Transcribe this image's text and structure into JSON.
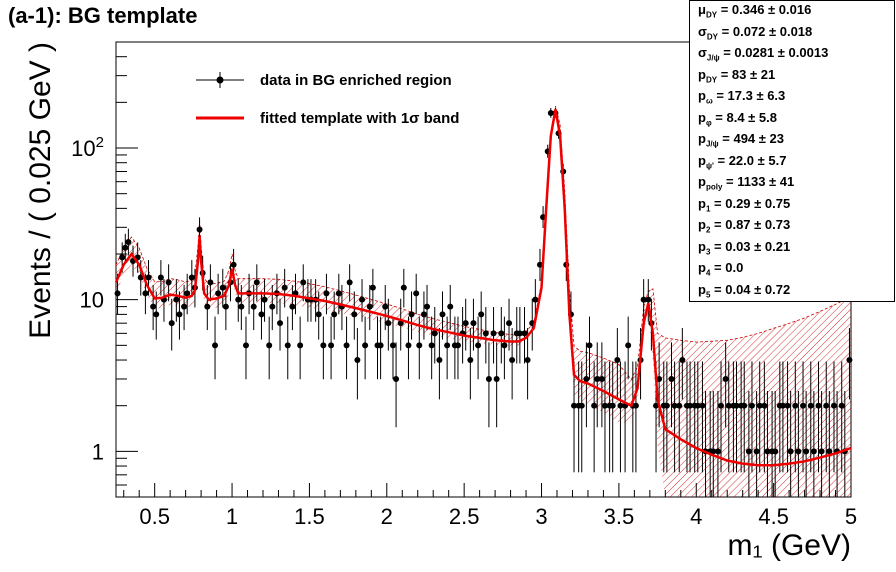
{
  "chart_data": {
    "type": "scatter",
    "title": "(a-1): BG template",
    "xlabel": "m₁ (GeV)",
    "ylabel": "Events / ( 0.025 GeV )",
    "xlim": [
      0.25,
      5.0
    ],
    "ylim": [
      0.5,
      500
    ],
    "yscale": "log",
    "x_ticks": [
      "0.5",
      "1",
      "1.5",
      "2",
      "2.5",
      "3",
      "3.5",
      "4",
      "4.5",
      "5"
    ],
    "y_ticks": [
      "1",
      "10",
      "10²"
    ],
    "legend": {
      "placement": "top-left",
      "items": [
        {
          "label": "data in BG enriched region",
          "style": "marker"
        },
        {
          "label": "fitted template with 1σ band",
          "style": "line",
          "color": "#ee0000"
        }
      ]
    },
    "series": [
      {
        "name": "data in BG enriched region",
        "points": [
          [
            0.26,
            11
          ],
          [
            0.29,
            19
          ],
          [
            0.31,
            22
          ],
          [
            0.33,
            24
          ],
          [
            0.36,
            18
          ],
          [
            0.39,
            19
          ],
          [
            0.41,
            14
          ],
          [
            0.44,
            11
          ],
          [
            0.46,
            14
          ],
          [
            0.49,
            9
          ],
          [
            0.51,
            8
          ],
          [
            0.54,
            14
          ],
          [
            0.56,
            10
          ],
          [
            0.59,
            13
          ],
          [
            0.61,
            7
          ],
          [
            0.64,
            10
          ],
          [
            0.66,
            8
          ],
          [
            0.69,
            9
          ],
          [
            0.71,
            11
          ],
          [
            0.74,
            14
          ],
          [
            0.76,
            12
          ],
          [
            0.79,
            29
          ],
          [
            0.81,
            15
          ],
          [
            0.84,
            9
          ],
          [
            0.86,
            13
          ],
          [
            0.89,
            5
          ],
          [
            0.91,
            11
          ],
          [
            0.94,
            12
          ],
          [
            0.96,
            9
          ],
          [
            0.99,
            13
          ],
          [
            1.01,
            17
          ],
          [
            1.04,
            10
          ],
          [
            1.06,
            9
          ],
          [
            1.09,
            5
          ],
          [
            1.11,
            11
          ],
          [
            1.14,
            9
          ],
          [
            1.16,
            13
          ],
          [
            1.19,
            8
          ],
          [
            1.21,
            10
          ],
          [
            1.24,
            5
          ],
          [
            1.26,
            9
          ],
          [
            1.29,
            11
          ],
          [
            1.31,
            7
          ],
          [
            1.34,
            12
          ],
          [
            1.36,
            5
          ],
          [
            1.39,
            9
          ],
          [
            1.41,
            11
          ],
          [
            1.44,
            5
          ],
          [
            1.46,
            13
          ],
          [
            1.49,
            10
          ],
          [
            1.51,
            10
          ],
          [
            1.54,
            10
          ],
          [
            1.56,
            8
          ],
          [
            1.59,
            5
          ],
          [
            1.61,
            11
          ],
          [
            1.64,
            5
          ],
          [
            1.66,
            8
          ],
          [
            1.69,
            11
          ],
          [
            1.71,
            9
          ],
          [
            1.74,
            5
          ],
          [
            1.76,
            13
          ],
          [
            1.79,
            8
          ],
          [
            1.81,
            4
          ],
          [
            1.84,
            10
          ],
          [
            1.86,
            5
          ],
          [
            1.89,
            9
          ],
          [
            1.91,
            12
          ],
          [
            1.94,
            5
          ],
          [
            1.96,
            5
          ],
          [
            1.99,
            9
          ],
          [
            2.01,
            7
          ],
          [
            2.04,
            5
          ],
          [
            2.06,
            3
          ],
          [
            2.09,
            7
          ],
          [
            2.11,
            12
          ],
          [
            2.14,
            5
          ],
          [
            2.16,
            8
          ],
          [
            2.19,
            11
          ],
          [
            2.21,
            5
          ],
          [
            2.24,
            8
          ],
          [
            2.26,
            9
          ],
          [
            2.29,
            5
          ],
          [
            2.31,
            6
          ],
          [
            2.34,
            4
          ],
          [
            2.36,
            8
          ],
          [
            2.39,
            5
          ],
          [
            2.41,
            9
          ],
          [
            2.44,
            5
          ],
          [
            2.46,
            5
          ],
          [
            2.49,
            6
          ],
          [
            2.51,
            7
          ],
          [
            2.54,
            4
          ],
          [
            2.56,
            7
          ],
          [
            2.59,
            5
          ],
          [
            2.61,
            8
          ],
          [
            2.64,
            6
          ],
          [
            2.66,
            3
          ],
          [
            2.69,
            6
          ],
          [
            2.71,
            3
          ],
          [
            2.74,
            6
          ],
          [
            2.76,
            5
          ],
          [
            2.79,
            7
          ],
          [
            2.81,
            4
          ],
          [
            2.84,
            6
          ],
          [
            2.86,
            6
          ],
          [
            2.89,
            6
          ],
          [
            2.91,
            4
          ],
          [
            2.94,
            7
          ],
          [
            2.96,
            10
          ],
          [
            2.99,
            17
          ],
          [
            3.01,
            35
          ],
          [
            3.04,
            95
          ],
          [
            3.06,
            170
          ],
          [
            3.09,
            170
          ],
          [
            3.11,
            125
          ],
          [
            3.14,
            70
          ],
          [
            3.16,
            17
          ],
          [
            3.19,
            8
          ],
          [
            3.21,
            2
          ],
          [
            3.24,
            2
          ],
          [
            3.26,
            2
          ],
          [
            3.29,
            3
          ],
          [
            3.31,
            5
          ],
          [
            3.34,
            2
          ],
          [
            3.36,
            3
          ],
          [
            3.39,
            3
          ],
          [
            3.41,
            2
          ],
          [
            3.44,
            2
          ],
          [
            3.46,
            2
          ],
          [
            3.49,
            4
          ],
          [
            3.51,
            2
          ],
          [
            3.54,
            2
          ],
          [
            3.56,
            5
          ],
          [
            3.59,
            2
          ],
          [
            3.61,
            2
          ],
          [
            3.64,
            4
          ],
          [
            3.66,
            10
          ],
          [
            3.69,
            10
          ],
          [
            3.71,
            7
          ],
          [
            3.74,
            2
          ],
          [
            3.76,
            3
          ],
          [
            3.79,
            2
          ],
          [
            3.81,
            2
          ],
          [
            3.84,
            3
          ],
          [
            3.86,
            2
          ],
          [
            3.89,
            2
          ],
          [
            3.91,
            4
          ],
          [
            3.94,
            2
          ],
          [
            3.96,
            2
          ],
          [
            3.99,
            2
          ],
          [
            4.01,
            2
          ],
          [
            4.04,
            2
          ],
          [
            4.06,
            1
          ],
          [
            4.09,
            1
          ],
          [
            4.11,
            1
          ],
          [
            4.14,
            1
          ],
          [
            4.16,
            2
          ],
          [
            4.19,
            3
          ],
          [
            4.21,
            2
          ],
          [
            4.24,
            2
          ],
          [
            4.26,
            2
          ],
          [
            4.29,
            2
          ],
          [
            4.31,
            2
          ],
          [
            4.34,
            1
          ],
          [
            4.36,
            2
          ],
          [
            4.39,
            1
          ],
          [
            4.41,
            2
          ],
          [
            4.44,
            2
          ],
          [
            4.46,
            1
          ],
          [
            4.49,
            1
          ],
          [
            4.51,
            1
          ],
          [
            4.54,
            2
          ],
          [
            4.56,
            2
          ],
          [
            4.59,
            2
          ],
          [
            4.61,
            1
          ],
          [
            4.64,
            2
          ],
          [
            4.66,
            1
          ],
          [
            4.69,
            2
          ],
          [
            4.71,
            1
          ],
          [
            4.74,
            2
          ],
          [
            4.76,
            1
          ],
          [
            4.79,
            2
          ],
          [
            4.81,
            1
          ],
          [
            4.84,
            2
          ],
          [
            4.86,
            1
          ],
          [
            4.89,
            2
          ],
          [
            4.91,
            1
          ],
          [
            4.94,
            2
          ],
          [
            4.96,
            1
          ],
          [
            4.99,
            4
          ]
        ]
      },
      {
        "name": "fitted template with 1σ band",
        "color": "#ee0000",
        "points": [
          [
            0.25,
            13
          ],
          [
            0.3,
            17
          ],
          [
            0.35,
            20
          ],
          [
            0.4,
            17
          ],
          [
            0.45,
            12.5
          ],
          [
            0.5,
            10.2
          ],
          [
            0.55,
            10.3
          ],
          [
            0.6,
            10.8
          ],
          [
            0.65,
            10.6
          ],
          [
            0.7,
            10.3
          ],
          [
            0.74,
            10.6
          ],
          [
            0.76,
            11.5
          ],
          [
            0.78,
            18
          ],
          [
            0.79,
            26
          ],
          [
            0.8,
            18
          ],
          [
            0.82,
            11
          ],
          [
            0.85,
            10
          ],
          [
            0.9,
            10.2
          ],
          [
            0.95,
            10.6
          ],
          [
            0.98,
            12.5
          ],
          [
            1.0,
            16
          ],
          [
            1.02,
            12.5
          ],
          [
            1.04,
            11
          ],
          [
            1.1,
            11
          ],
          [
            1.2,
            11
          ],
          [
            1.3,
            10.9
          ],
          [
            1.4,
            10.6
          ],
          [
            1.5,
            10.2
          ],
          [
            1.6,
            9.8
          ],
          [
            1.7,
            9.3
          ],
          [
            1.8,
            8.8
          ],
          [
            1.9,
            8.3
          ],
          [
            2.0,
            7.8
          ],
          [
            2.1,
            7.3
          ],
          [
            2.2,
            6.8
          ],
          [
            2.3,
            6.4
          ],
          [
            2.4,
            6.1
          ],
          [
            2.5,
            5.8
          ],
          [
            2.6,
            5.6
          ],
          [
            2.7,
            5.4
          ],
          [
            2.8,
            5.3
          ],
          [
            2.85,
            5.3
          ],
          [
            2.9,
            5.6
          ],
          [
            2.95,
            6.5
          ],
          [
            3.0,
            12
          ],
          [
            3.03,
            40
          ],
          [
            3.06,
            120
          ],
          [
            3.09,
            180
          ],
          [
            3.12,
            120
          ],
          [
            3.15,
            40
          ],
          [
            3.18,
            8
          ],
          [
            3.21,
            3.2
          ],
          [
            3.25,
            2.9
          ],
          [
            3.3,
            2.8
          ],
          [
            3.4,
            2.5
          ],
          [
            3.5,
            2.2
          ],
          [
            3.58,
            2.0
          ],
          [
            3.62,
            2.6
          ],
          [
            3.66,
            7
          ],
          [
            3.69,
            9.5
          ],
          [
            3.72,
            6
          ],
          [
            3.75,
            2.2
          ],
          [
            3.8,
            1.4
          ],
          [
            3.9,
            1.2
          ],
          [
            4.0,
            1.05
          ],
          [
            4.1,
            0.95
          ],
          [
            4.2,
            0.87
          ],
          [
            4.3,
            0.83
          ],
          [
            4.4,
            0.81
          ],
          [
            4.5,
            0.81
          ],
          [
            4.6,
            0.83
          ],
          [
            4.7,
            0.86
          ],
          [
            4.8,
            0.91
          ],
          [
            4.9,
            0.97
          ],
          [
            5.0,
            1.05
          ]
        ]
      }
    ],
    "band_relative_error": [
      [
        0.25,
        0.3
      ],
      [
        1.0,
        0.25
      ],
      [
        1.5,
        0.25
      ],
      [
        2.0,
        0.2
      ],
      [
        2.5,
        0.15
      ],
      [
        2.9,
        0.1
      ],
      [
        3.09,
        0.05
      ],
      [
        3.2,
        0.55
      ],
      [
        3.5,
        0.7
      ],
      [
        3.69,
        0.2
      ],
      [
        3.8,
        3.0
      ],
      [
        4.0,
        4.0
      ],
      [
        4.5,
        7.0
      ],
      [
        5.0,
        9.0
      ]
    ]
  },
  "stats_box": [
    {
      "base": "μ",
      "sub": "DY",
      "value": " =  0.346 ± 0.016"
    },
    {
      "base": "σ",
      "sub": "DY",
      "value": " =  0.072 ± 0.018"
    },
    {
      "base": "σ",
      "sub": "J/ψ",
      "value": " =  0.0281 ± 0.0013"
    },
    {
      "base": "p",
      "sub": "DY",
      "value": " =  83 ± 21"
    },
    {
      "base": "p",
      "sub": "ω",
      "value": " =  17.3 ± 6.3"
    },
    {
      "base": "p",
      "sub": "φ",
      "value": " =  8.4 ± 5.8"
    },
    {
      "base": "p",
      "sub": "J/ψ",
      "value": " =  494 ± 23"
    },
    {
      "base": "p",
      "sub": "ψ'",
      "value": " =  22.0 ± 5.7"
    },
    {
      "base": "p",
      "sub": "poly",
      "value": " =  1133 ± 41"
    },
    {
      "base": "p",
      "sub": "1",
      "value": " =  0.29 ± 0.75"
    },
    {
      "base": "p",
      "sub": "2",
      "value": " =  0.87 ± 0.73"
    },
    {
      "base": "p",
      "sub": "3",
      "value": " =  0.03 ± 0.21"
    },
    {
      "base": "p",
      "sub": "4",
      "value": " =  0.0"
    },
    {
      "base": "p",
      "sub": "5",
      "value": " =  0.04 ± 0.72"
    }
  ]
}
